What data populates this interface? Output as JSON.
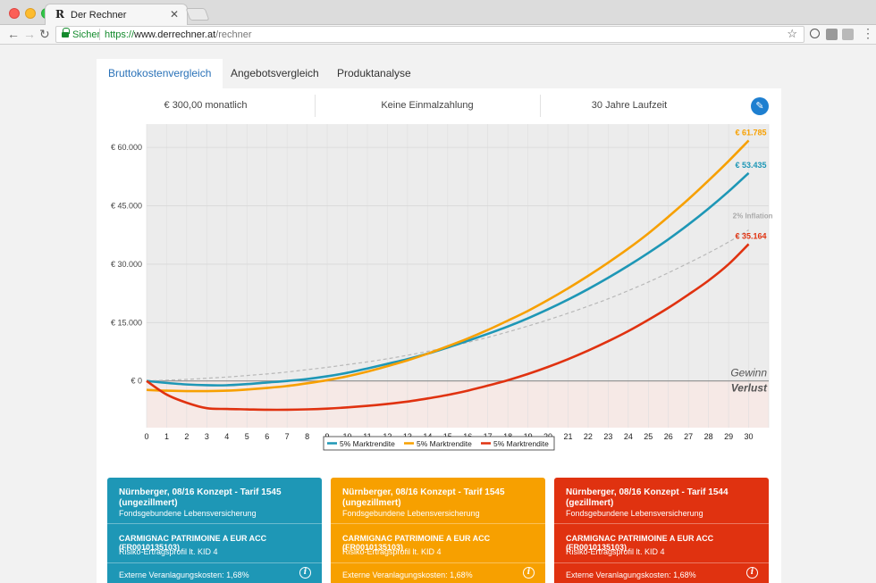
{
  "browser": {
    "tab_title": "Der Rechner",
    "tab_favicon": "R",
    "secure_label": "Sicher",
    "url_scheme": "https://",
    "url_host": "www.derrechner.at",
    "url_path": "/rechner"
  },
  "tabs": [
    {
      "label": "Bruttokostenvergleich",
      "active": true
    },
    {
      "label": "Angebotsvergleich",
      "active": false
    },
    {
      "label": "Produktanalyse",
      "active": false
    }
  ],
  "summary": {
    "monthly": "€ 300,00 monatlich",
    "lump_sum": "Keine Einmalzahlung",
    "duration": "30 Jahre Laufzeit"
  },
  "colors": {
    "blue": "#1e97b6",
    "orange": "#f7a000",
    "red": "#e03210",
    "inflation": "#b8b8b8",
    "accent": "#2a72b8"
  },
  "chart_data": {
    "type": "line",
    "x": [
      0,
      1,
      2,
      3,
      4,
      5,
      6,
      7,
      8,
      9,
      10,
      11,
      12,
      13,
      14,
      15,
      16,
      17,
      18,
      19,
      20,
      21,
      22,
      23,
      24,
      25,
      26,
      27,
      28,
      29,
      30
    ],
    "ylim": [
      -12000,
      66000
    ],
    "yticks": [
      0,
      15000,
      30000,
      45000,
      60000
    ],
    "ytick_labels": [
      "€ 0",
      "€ 15.000",
      "€ 30.000",
      "€ 45.000",
      "€ 60.000"
    ],
    "grid": true,
    "zone_labels": {
      "gain": "Gewinn",
      "loss": "Verlust"
    },
    "legend_position": "bottom",
    "series": [
      {
        "name": "5% Marktrendite",
        "color": "#1e97b6",
        "end_label": "€ 53.435",
        "values": [
          0,
          -500,
          -900,
          -1100,
          -1100,
          -800,
          -400,
          0,
          500,
          1200,
          2100,
          3200,
          4400,
          5600,
          7000,
          8600,
          10300,
          12100,
          14000,
          16100,
          18400,
          20900,
          23600,
          26500,
          29600,
          32900,
          36400,
          40200,
          44300,
          48700,
          53435
        ]
      },
      {
        "name": "5% Marktrendite",
        "color": "#f7a000",
        "end_label": "€ 61.785",
        "values": [
          -2300,
          -2500,
          -2600,
          -2600,
          -2500,
          -2200,
          -1800,
          -1300,
          -600,
          200,
          1200,
          2400,
          3800,
          5300,
          7000,
          8900,
          10900,
          13100,
          15500,
          18000,
          20800,
          23800,
          27000,
          30400,
          34000,
          37900,
          42200,
          46700,
          51500,
          56500,
          61785
        ]
      },
      {
        "name": "5% Marktrendite",
        "color": "#e03210",
        "end_label": "€ 35.164",
        "values": [
          0,
          -3500,
          -5600,
          -7000,
          -7200,
          -7300,
          -7400,
          -7400,
          -7300,
          -7100,
          -6800,
          -6400,
          -5900,
          -5300,
          -4500,
          -3600,
          -2500,
          -1200,
          200,
          1800,
          3600,
          5600,
          7800,
          10200,
          12800,
          15700,
          18800,
          22200,
          25800,
          30000,
          35164
        ]
      },
      {
        "name": "2% Inflation",
        "color": "#b8b8b8",
        "dashed": true,
        "values": [
          0,
          200,
          400,
          700,
          1000,
          1400,
          1800,
          2300,
          2900,
          3500,
          4200,
          4900,
          5700,
          6600,
          7600,
          8700,
          9900,
          11200,
          12600,
          14100,
          15700,
          17400,
          19200,
          21100,
          23200,
          25400,
          27800,
          30300,
          32900,
          35700,
          38800
        ]
      }
    ]
  },
  "offers": [
    {
      "title": "Nürnberger, 08/16 Konzept - Tarif 1545 (ungezillmert)",
      "type": "Fondsgebundene Lebensversicherung",
      "fund": "CARMIGNAC PATRIMOINE A EUR ACC (FR0010135103)",
      "risk": "Risiko-Ertragsprofil lt. KID 4",
      "costs": "Externe Veranlagungskosten: 1,68%",
      "color": "#1e97b6"
    },
    {
      "title": "Nürnberger, 08/16 Konzept - Tarif 1545 (ungezillmert)",
      "type": "Fondsgebundene Lebensversicherung",
      "fund": "CARMIGNAC PATRIMOINE A EUR ACC (FR0010135103)",
      "risk": "Risiko-Ertragsprofil lt. KID 4",
      "costs": "Externe Veranlagungskosten: 1,68%",
      "color": "#f7a000"
    },
    {
      "title": "Nürnberger, 08/16 Konzept - Tarif 1544 (gezillmert)",
      "type": "Fondsgebundene Lebensversicherung",
      "fund": "CARMIGNAC PATRIMOINE A EUR ACC (FR0010135103)",
      "risk": "Risiko-Ertragsprofil lt. KID 4",
      "costs": "Externe Veranlagungskosten: 1,68%",
      "color": "#e03210"
    }
  ]
}
